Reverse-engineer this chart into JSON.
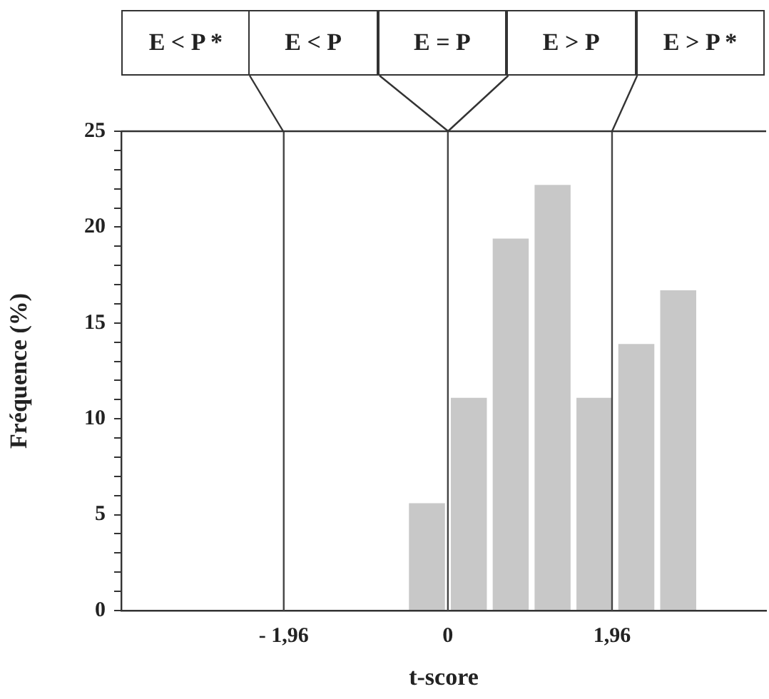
{
  "chart_data": {
    "type": "histogram",
    "xlabel": "t-score",
    "ylabel": "Fréquence (%)",
    "bins": [
      -0.5,
      0,
      0.5,
      1,
      1.5,
      2,
      2.5,
      3
    ],
    "values": [
      5.6,
      11.1,
      19.4,
      22.2,
      11.1,
      13.9,
      16.7
    ],
    "color": "#c8c8c8",
    "xlim": [
      -3.9,
      3.8
    ],
    "xticks": [
      {
        "value": -1.96,
        "label": "- 1,96"
      },
      0,
      {
        "value": 1.96,
        "label": "1,96"
      }
    ],
    "ylim": [
      0,
      25
    ],
    "yticks": [
      0,
      {
        "value": 1,
        "label": null
      },
      {
        "value": 2,
        "label": null
      },
      {
        "value": 3,
        "label": null
      },
      {
        "value": 4,
        "label": null
      },
      5,
      {
        "value": 6,
        "label": null
      },
      {
        "value": 7,
        "label": null
      },
      {
        "value": 8,
        "label": null
      },
      {
        "value": 9,
        "label": null
      },
      10,
      {
        "value": 11,
        "label": null
      },
      {
        "value": 12,
        "label": null
      },
      {
        "value": 13,
        "label": null
      },
      {
        "value": 14,
        "label": null
      },
      15,
      {
        "value": 16,
        "label": null
      },
      {
        "value": 17,
        "label": null
      },
      {
        "value": 18,
        "label": null
      },
      {
        "value": 19,
        "label": null
      },
      20,
      {
        "value": 21,
        "label": null
      },
      {
        "value": 22,
        "label": null
      },
      {
        "value": 23,
        "label": null
      },
      {
        "value": 24,
        "label": null
      },
      25
    ],
    "ref_lines": [
      {
        "axis": "x",
        "value": -1.96,
        "color": "#444444"
      },
      {
        "axis": "x",
        "value": 0,
        "color": "#444444"
      },
      {
        "axis": "x",
        "value": 1.96,
        "color": "#444444"
      }
    ],
    "annotations": [
      "E < P *",
      "E < P",
      "E = P",
      "E > P",
      "E > P *"
    ],
    "legend": false
  }
}
